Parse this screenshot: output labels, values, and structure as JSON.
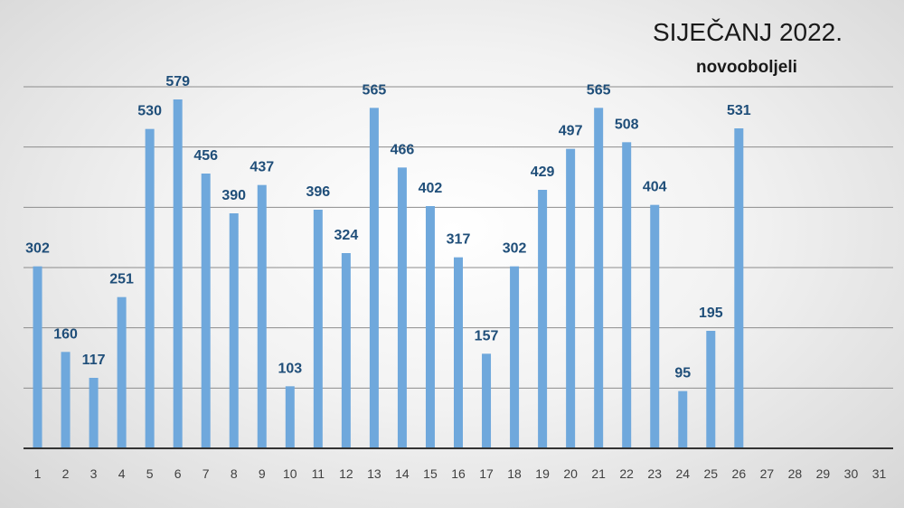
{
  "chart_data": {
    "type": "bar",
    "title": "SIJEČANJ 2022.",
    "subtitle": "novooboljeli",
    "xlabel": "",
    "ylabel": "",
    "categories": [
      "1",
      "2",
      "3",
      "4",
      "5",
      "6",
      "7",
      "8",
      "9",
      "10",
      "11",
      "12",
      "13",
      "14",
      "15",
      "16",
      "17",
      "18",
      "19",
      "20",
      "21",
      "22",
      "23",
      "24",
      "25",
      "26",
      "27",
      "28",
      "29",
      "30",
      "31"
    ],
    "series": [
      {
        "values": [
          302,
          160,
          117,
          251,
          530,
          579,
          456,
          390,
          437,
          103,
          396,
          324,
          565,
          466,
          402,
          317,
          157,
          302,
          429,
          497,
          565,
          508,
          404,
          95,
          195,
          531,
          null,
          null,
          null,
          null,
          null
        ]
      }
    ],
    "ylim": [
      0,
      600
    ],
    "grid": true,
    "legend": "none",
    "colors": {
      "bar": "#6fa8dc",
      "label": "#1f4e79",
      "grid": "#8c8c8c",
      "axis": "#333333"
    }
  }
}
